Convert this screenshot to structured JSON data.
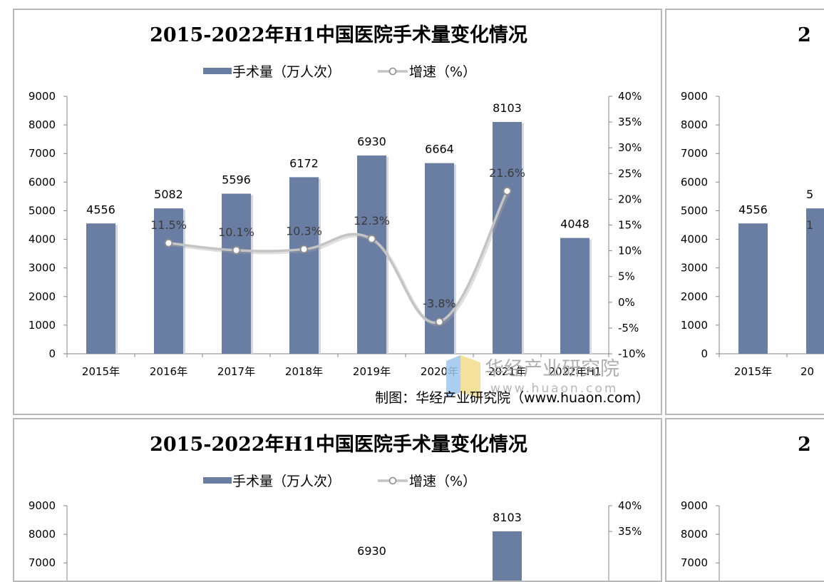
{
  "chart_data": {
    "type": "bar",
    "title": "2015-2022年H1中国医院手术量变化情况",
    "categories": [
      "2015年",
      "2016年",
      "2017年",
      "2018年",
      "2019年",
      "2020年",
      "2021年",
      "2022年H1"
    ],
    "series": [
      {
        "name": "手术量（万人次）",
        "type": "bar",
        "axis": "left",
        "values": [
          4556,
          5082,
          5596,
          6172,
          6930,
          6664,
          8103,
          4048
        ],
        "labels": [
          "4556",
          "5082",
          "5596",
          "6172",
          "6930",
          "6664",
          "8103",
          "4048"
        ]
      },
      {
        "name": "增速（%）",
        "type": "line",
        "axis": "right",
        "values": [
          null,
          11.5,
          10.1,
          10.3,
          12.3,
          -3.8,
          21.6,
          null
        ],
        "labels": [
          "",
          "11.5%",
          "10.1%",
          "10.3%",
          "12.3%",
          "-3.8%",
          "21.6%",
          ""
        ]
      }
    ],
    "left_axis": {
      "min": 0,
      "max": 9000,
      "step": 1000,
      "ticks": [
        "0",
        "1000",
        "2000",
        "3000",
        "4000",
        "5000",
        "6000",
        "7000",
        "8000",
        "9000"
      ]
    },
    "right_axis": {
      "min": -10,
      "max": 40,
      "step": 5,
      "ticks": [
        "-10%",
        "-5%",
        "0%",
        "5%",
        "10%",
        "15%",
        "20%",
        "25%",
        "30%",
        "35%",
        "40%"
      ]
    },
    "legend_position": "top",
    "grid": false,
    "colors": {
      "bar": "#6a7da3",
      "line": "#c4c4c4",
      "marker_fill": "#ffffff",
      "marker_stroke": "#8e8e8e"
    }
  },
  "watermark": {
    "name": "华经产业研究院",
    "url": "www.huaon.com"
  },
  "credit": "制图：华经产业研究院（www.huaon.com）",
  "clipped_panels": {
    "top_right_title": "2",
    "bottom_right_title": "2",
    "partial_bar_label": "5",
    "partial_growth_label": "1",
    "bottom_partial_bar_label": "6930",
    "partial_category": "20"
  }
}
